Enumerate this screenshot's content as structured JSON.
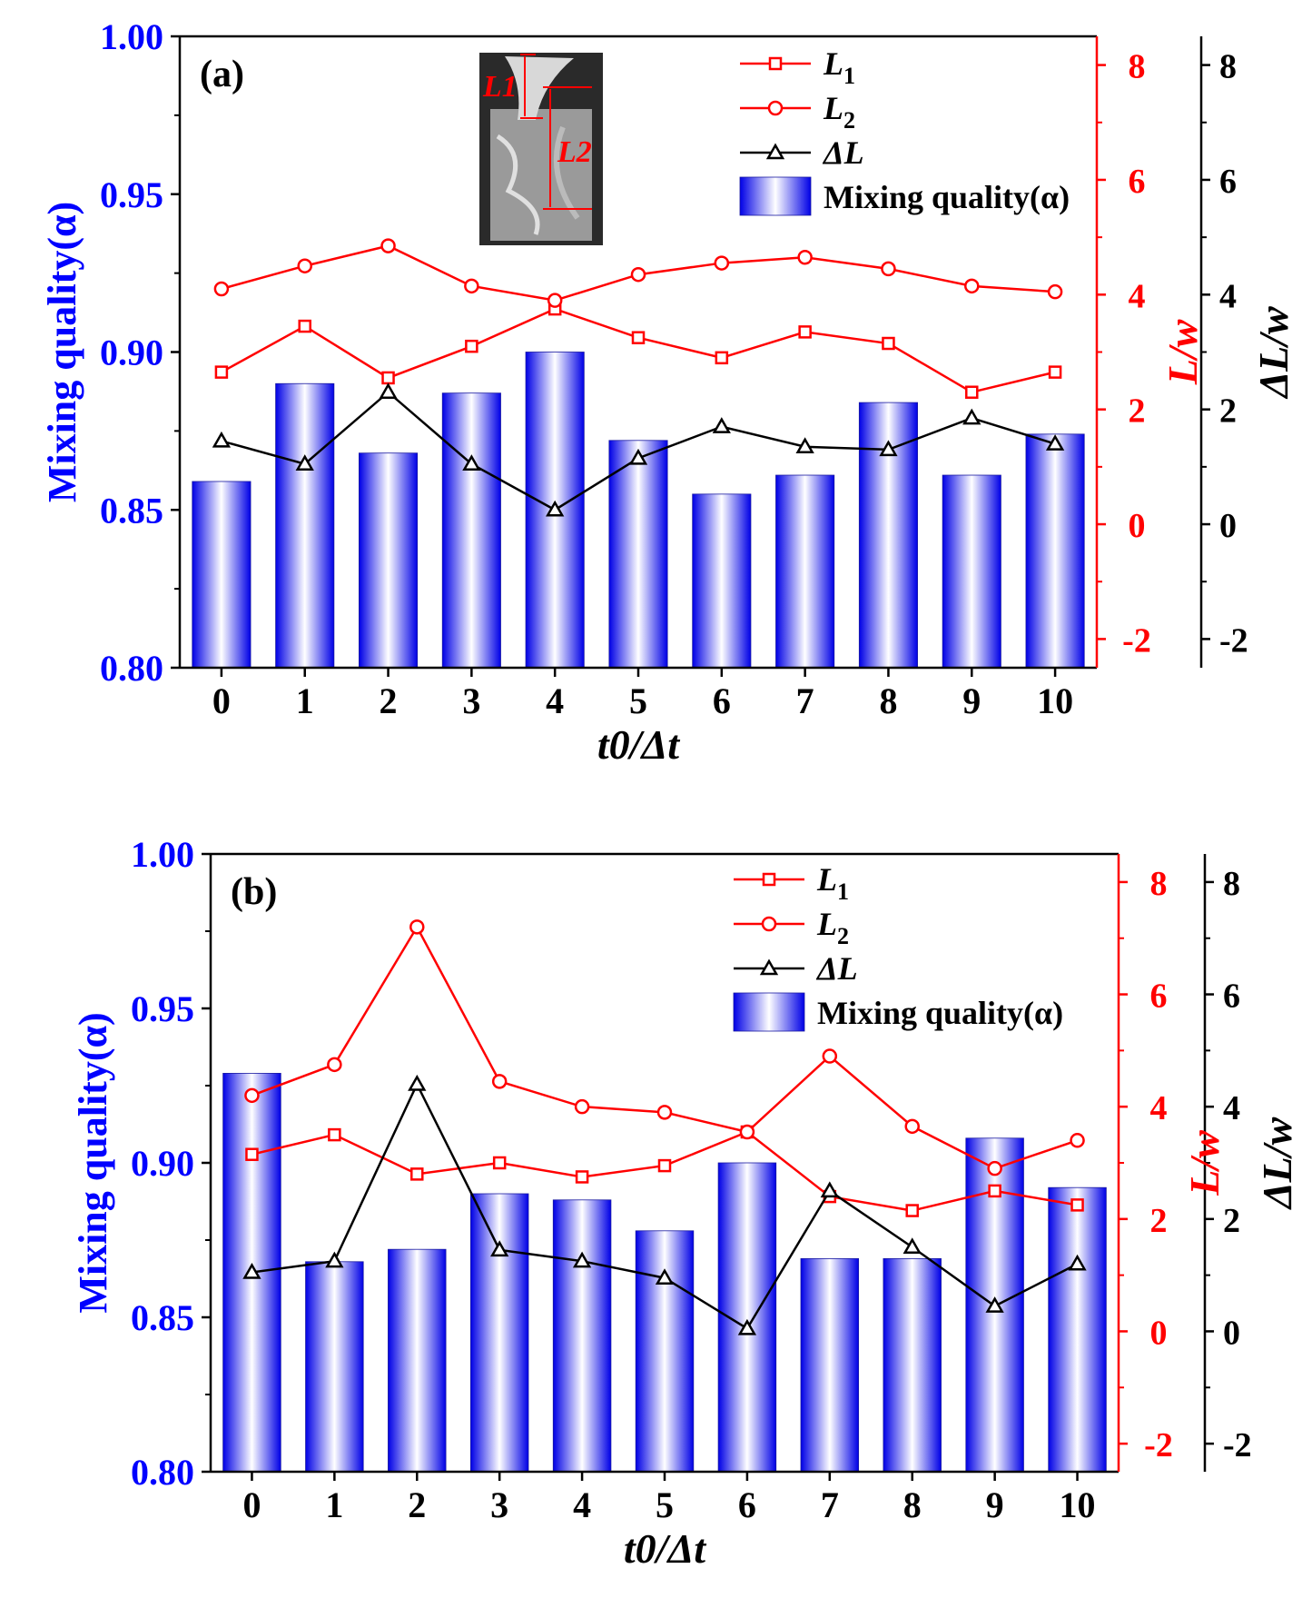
{
  "colors": {
    "bar_edge": "#0000ee",
    "bar_mid": "#ffffff",
    "left_axis": "#0000ff",
    "right_axis": "#ff0000",
    "far_axis": "#000000",
    "l1": "#ff0000",
    "l2": "#ff0000",
    "dl": "#000000"
  },
  "chart_data": [
    {
      "type": "bar",
      "panel_label": "(a)",
      "categories": [
        0,
        1,
        2,
        3,
        4,
        5,
        6,
        7,
        8,
        9,
        10
      ],
      "xlabel": "t0/Δt",
      "ylabel": "Mixing quality(α)",
      "ylim": [
        0.8,
        1.0
      ],
      "yticks": [
        "0.80",
        "0.85",
        "0.90",
        "0.95",
        "1.00"
      ],
      "right_ylabel": "L/w",
      "right_ylim": [
        -2.5,
        8.5
      ],
      "right_yticks": [
        "-2",
        "0",
        "2",
        "4",
        "6",
        "8"
      ],
      "far_ylabel": "ΔL/w",
      "far_ylim": [
        -2.5,
        8.5
      ],
      "far_yticks": [
        "-2",
        "0",
        "2",
        "4",
        "6",
        "8"
      ],
      "inset_labels": [
        "L1",
        "L2"
      ],
      "legend": [
        {
          "key": "l1",
          "main": "L",
          "sub": "1",
          "marker": "square"
        },
        {
          "key": "l2",
          "main": "L",
          "sub": "2",
          "marker": "circle"
        },
        {
          "key": "dl",
          "main": "ΔL",
          "sub": "",
          "marker": "triangle"
        },
        {
          "key": "bar",
          "main": "Mixing quality(α)",
          "sub": "",
          "marker": "bar"
        }
      ],
      "bars": [
        0.859,
        0.89,
        0.868,
        0.887,
        0.9,
        0.872,
        0.855,
        0.861,
        0.884,
        0.861,
        0.874
      ],
      "series": [
        {
          "name": "L1",
          "key": "l1",
          "axis": "right",
          "marker": "square",
          "values": [
            2.65,
            3.45,
            2.55,
            3.1,
            3.75,
            3.25,
            2.9,
            3.35,
            3.15,
            2.3,
            2.65
          ]
        },
        {
          "name": "L2",
          "key": "l2",
          "axis": "right",
          "marker": "circle",
          "values": [
            4.1,
            4.5,
            4.85,
            4.15,
            3.9,
            4.35,
            4.55,
            4.65,
            4.45,
            4.15,
            4.05
          ]
        },
        {
          "name": "ΔL",
          "key": "dl",
          "axis": "far",
          "marker": "triangle",
          "values": [
            1.45,
            1.05,
            2.3,
            1.05,
            0.25,
            1.15,
            1.7,
            1.35,
            1.3,
            1.85,
            1.4
          ]
        }
      ]
    },
    {
      "type": "bar",
      "panel_label": "(b)",
      "categories": [
        0,
        1,
        2,
        3,
        4,
        5,
        6,
        7,
        8,
        9,
        10
      ],
      "xlabel": "t0/Δt",
      "ylabel": "Mixing quality(α)",
      "ylim": [
        0.8,
        1.0
      ],
      "yticks": [
        "0.80",
        "0.85",
        "0.90",
        "0.95",
        "1.00"
      ],
      "right_ylabel": "L/w",
      "right_ylim": [
        -2.5,
        8.5
      ],
      "right_yticks": [
        "-2",
        "0",
        "2",
        "4",
        "6",
        "8"
      ],
      "far_ylabel": "ΔL/w",
      "far_ylim": [
        -2.5,
        8.5
      ],
      "far_yticks": [
        "-2",
        "0",
        "2",
        "4",
        "6",
        "8"
      ],
      "legend": [
        {
          "key": "l1",
          "main": "L",
          "sub": "1",
          "marker": "square"
        },
        {
          "key": "l2",
          "main": "L",
          "sub": "2",
          "marker": "circle"
        },
        {
          "key": "dl",
          "main": "ΔL",
          "sub": "",
          "marker": "triangle"
        },
        {
          "key": "bar",
          "main": "Mixing quality(α)",
          "sub": "",
          "marker": "bar"
        }
      ],
      "bars": [
        0.929,
        0.868,
        0.872,
        0.89,
        0.888,
        0.878,
        0.9,
        0.869,
        0.869,
        0.908,
        0.892
      ],
      "series": [
        {
          "name": "L1",
          "key": "l1",
          "axis": "right",
          "marker": "square",
          "values": [
            3.15,
            3.5,
            2.8,
            3.0,
            2.75,
            2.95,
            3.55,
            2.4,
            2.15,
            2.5,
            2.25
          ]
        },
        {
          "name": "L2",
          "key": "l2",
          "axis": "right",
          "marker": "circle",
          "values": [
            4.2,
            4.75,
            7.2,
            4.45,
            4.0,
            3.9,
            3.55,
            4.9,
            3.65,
            2.9,
            3.4
          ]
        },
        {
          "name": "ΔL",
          "key": "dl",
          "axis": "far",
          "marker": "triangle",
          "values": [
            1.05,
            1.25,
            4.4,
            1.45,
            1.25,
            0.95,
            0.05,
            2.5,
            1.5,
            0.45,
            1.2
          ]
        }
      ]
    }
  ]
}
